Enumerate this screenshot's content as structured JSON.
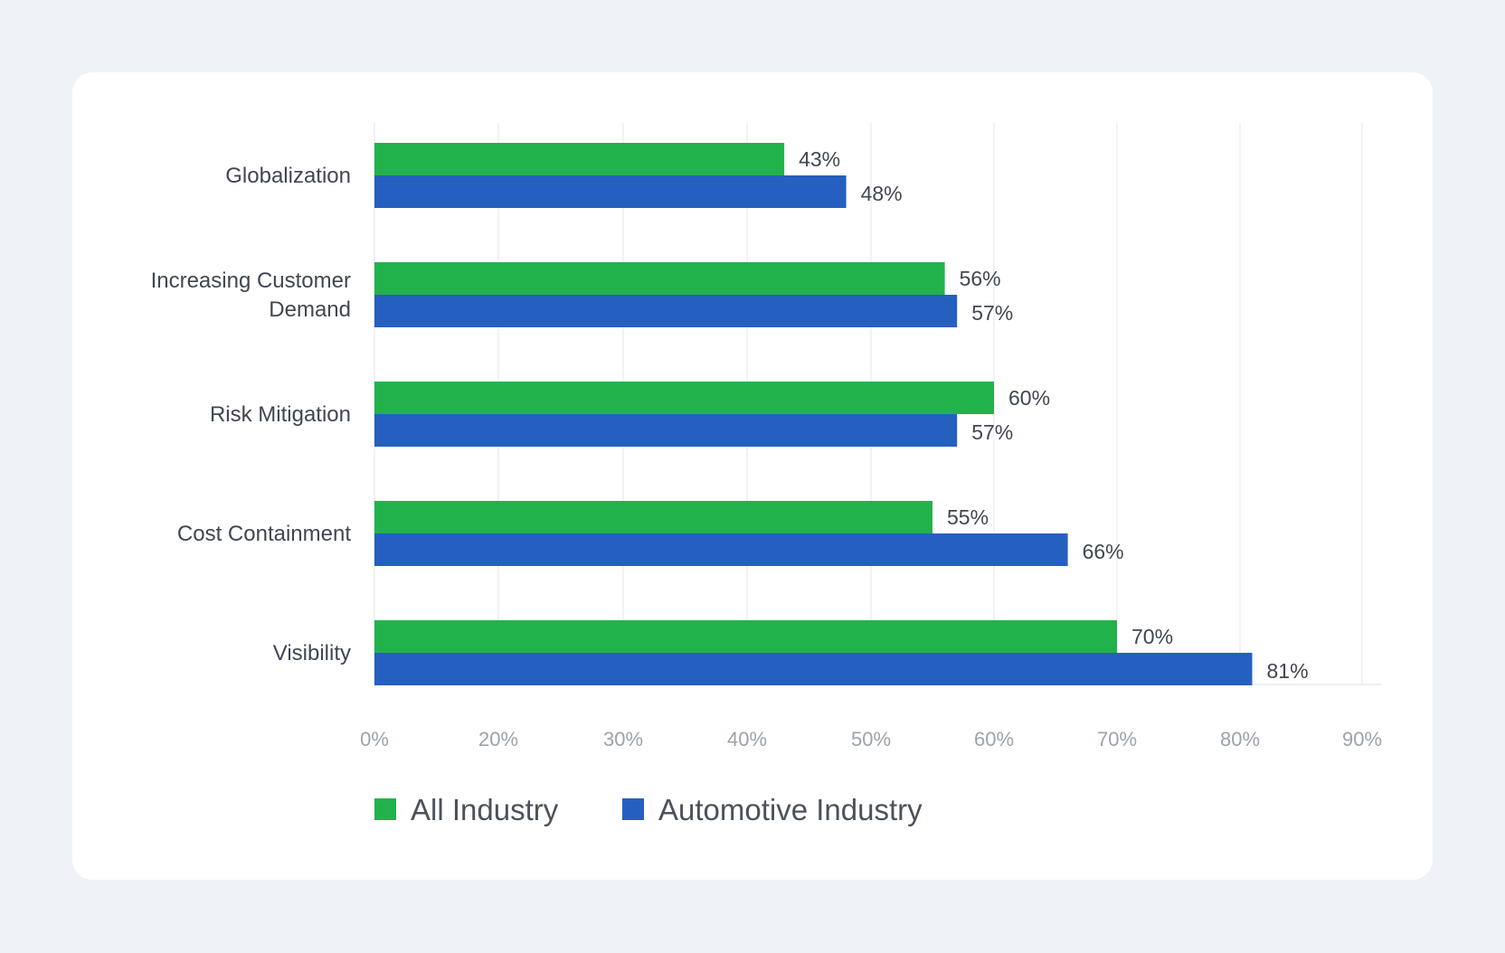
{
  "colors": {
    "background": "#eff3f7",
    "card": "#ffffff",
    "all_industry": "#22b24c",
    "automotive_industry": "#2560c0",
    "grid": "#e9ecef",
    "axis_text": "#9aa3ad",
    "label_text": "#3f4752"
  },
  "chart_data": {
    "type": "bar",
    "orientation": "horizontal",
    "title": "",
    "xlabel": "",
    "ylabel": "",
    "categories": [
      [
        "Globalization"
      ],
      [
        "Increasing Customer",
        "Demand"
      ],
      [
        "Risk Mitigation"
      ],
      [
        "Cost Containment"
      ],
      [
        "Visibility"
      ]
    ],
    "series": [
      {
        "name": "All Industry",
        "color": "#22b24c",
        "values": [
          43,
          56,
          60,
          55,
          70
        ],
        "labels": [
          "43%",
          "56%",
          "60%",
          "55%",
          "70%"
        ]
      },
      {
        "name": "Automotive Industry",
        "color": "#2560c0",
        "values": [
          48,
          57,
          57,
          66,
          81
        ],
        "labels": [
          "48%",
          "57%",
          "57%",
          "66%",
          "81%"
        ]
      }
    ],
    "x_axis": {
      "ticks": [
        0,
        20,
        30,
        40,
        50,
        60,
        70,
        80,
        90
      ],
      "tick_labels": [
        "0%",
        "20%",
        "30%",
        "40%",
        "50%",
        "60%",
        "70%",
        "80%",
        "90%"
      ]
    },
    "grid": true,
    "legend_position": "bottom-left"
  }
}
